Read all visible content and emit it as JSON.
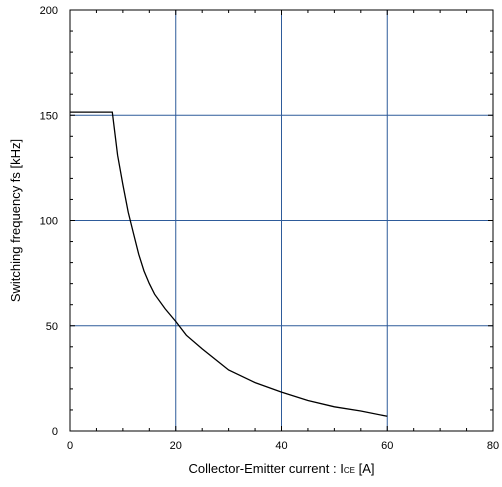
{
  "chart_data": {
    "type": "line",
    "xlabel": "Collector-Emitter current : ",
    "xlabel_symbol": "I",
    "xlabel_subscript": "CE",
    "xlabel_unit": " [A]",
    "ylabel": "Switching frequency fs [kHz]",
    "xlim": [
      0,
      80
    ],
    "ylim": [
      0,
      200
    ],
    "x_ticks": [
      0,
      20,
      40,
      60,
      80
    ],
    "y_ticks": [
      0,
      50,
      100,
      150,
      200
    ],
    "x_tick_labels": [
      "0",
      "20",
      "40",
      "60",
      "80"
    ],
    "y_tick_labels": [
      "0",
      "50",
      "100",
      "150",
      "200"
    ],
    "grid": true,
    "colors": {
      "grid": "#2e5b9a",
      "line": "#000000",
      "frame": "#000000"
    },
    "series": [
      {
        "x": [
          0,
          8,
          9,
          10,
          11,
          12,
          13,
          14,
          15,
          16,
          18,
          20,
          22,
          25,
          28,
          30,
          35,
          40,
          45,
          50,
          55,
          60
        ],
        "y": [
          151.5,
          151.5,
          131,
          117,
          104,
          94,
          84,
          76,
          70,
          65,
          58,
          52,
          45.5,
          39,
          33,
          29,
          23,
          18.5,
          14.5,
          11.5,
          9.5,
          7
        ]
      }
    ]
  }
}
